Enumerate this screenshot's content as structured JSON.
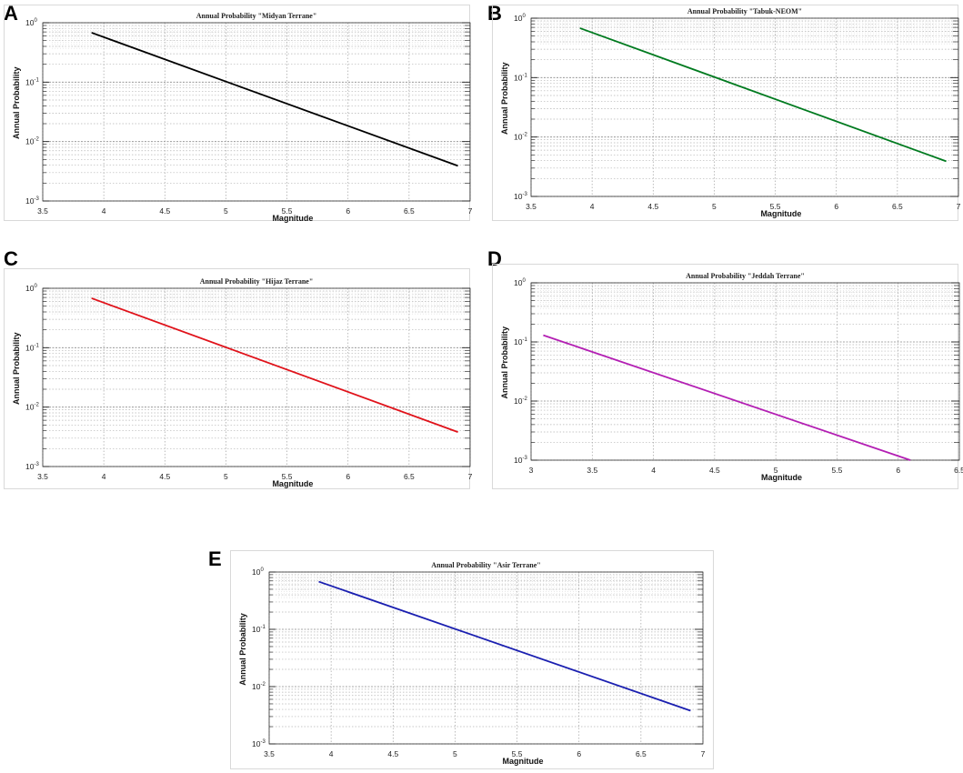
{
  "figure": {
    "panels": [
      {
        "letter": "A",
        "chart_data": {
          "type": "line",
          "title": "Annual Probability \"Midyan Terrane\"",
          "xlabel": "Magnitude",
          "ylabel": "Annual Probability",
          "xlim": [
            3.5,
            7
          ],
          "xticks": [
            "3.5",
            "4",
            "4.5",
            "5",
            "5.5",
            "6",
            "6.5",
            "7"
          ],
          "yscale": "log",
          "ylim": [
            0.001,
            1
          ],
          "yticks": [
            {
              "base": "10",
              "exp": "0"
            },
            {
              "base": "10",
              "exp": "-1"
            },
            {
              "base": "10",
              "exp": "-2"
            },
            {
              "base": "10",
              "exp": "-3"
            }
          ],
          "grid": true,
          "series": [
            {
              "name": "Midyan Terrane",
              "color": "#000000",
              "x": [
                3.9,
                6.9
              ],
              "y": [
                0.68,
                0.0039
              ]
            }
          ]
        }
      },
      {
        "letter": "B",
        "chart_data": {
          "type": "line",
          "title": "Annual Probability \"Tabuk-NEOM\"",
          "xlabel": "Magnitude",
          "ylabel": "Annual Probability",
          "xlim": [
            3.5,
            7
          ],
          "xticks": [
            "3.5",
            "4",
            "4.5",
            "5",
            "5.5",
            "6",
            "6.5",
            "7"
          ],
          "yscale": "log",
          "ylim": [
            0.001,
            1
          ],
          "yticks": [
            {
              "base": "10",
              "exp": "0"
            },
            {
              "base": "10",
              "exp": "-1"
            },
            {
              "base": "10",
              "exp": "-2"
            },
            {
              "base": "10",
              "exp": "-3"
            }
          ],
          "grid": true,
          "series": [
            {
              "name": "Tabuk-NEOM",
              "color": "#007a1f",
              "x": [
                3.9,
                6.9
              ],
              "y": [
                0.68,
                0.0039
              ]
            }
          ]
        }
      },
      {
        "letter": "C",
        "chart_data": {
          "type": "line",
          "title": "Annual Probability \"Hijaz Terrane\"",
          "xlabel": "Magnitude",
          "ylabel": "Annual Probability",
          "xlim": [
            3.5,
            7
          ],
          "xticks": [
            "3.5",
            "4",
            "4.5",
            "5",
            "5.5",
            "6",
            "6.5",
            "7"
          ],
          "yscale": "log",
          "ylim": [
            0.001,
            1
          ],
          "yticks": [
            {
              "base": "10",
              "exp": "0"
            },
            {
              "base": "10",
              "exp": "-1"
            },
            {
              "base": "10",
              "exp": "-2"
            },
            {
              "base": "10",
              "exp": "-3"
            }
          ],
          "grid": true,
          "series": [
            {
              "name": "Hijaz Terrane",
              "color": "#e0121a",
              "x": [
                3.9,
                6.9
              ],
              "y": [
                0.68,
                0.0038
              ]
            }
          ]
        }
      },
      {
        "letter": "D",
        "chart_data": {
          "type": "line",
          "title": "Annual Probability \"Jeddah Terrane\"",
          "xlabel": "Magnitude",
          "ylabel": "Annual Probability",
          "xlim": [
            3,
            6.5
          ],
          "xticks": [
            "3",
            "3.5",
            "4",
            "4.5",
            "5",
            "5.5",
            "6",
            "6.5"
          ],
          "yscale": "log",
          "ylim": [
            0.001,
            1
          ],
          "yticks": [
            {
              "base": "10",
              "exp": "0"
            },
            {
              "base": "10",
              "exp": "-1"
            },
            {
              "base": "10",
              "exp": "-2"
            },
            {
              "base": "10",
              "exp": "-3"
            }
          ],
          "grid": true,
          "series": [
            {
              "name": "Jeddah Terrane",
              "color": "#b31fb3",
              "x": [
                3.1,
                6.1
              ],
              "y": [
                0.13,
                0.001
              ]
            }
          ]
        }
      },
      {
        "letter": "E",
        "chart_data": {
          "type": "line",
          "title": "Annual Probability \"Asir Terrane\"",
          "xlabel": "Magnitude",
          "ylabel": "Annual Probability",
          "xlim": [
            3.5,
            7
          ],
          "xticks": [
            "3.5",
            "4",
            "4.5",
            "5",
            "5.5",
            "6",
            "6.5",
            "7"
          ],
          "yscale": "log",
          "ylim": [
            0.001,
            1
          ],
          "yticks": [
            {
              "base": "10",
              "exp": "0"
            },
            {
              "base": "10",
              "exp": "-1"
            },
            {
              "base": "10",
              "exp": "-2"
            },
            {
              "base": "10",
              "exp": "-3"
            }
          ],
          "grid": true,
          "series": [
            {
              "name": "Asir Terrane",
              "color": "#1a1fb0",
              "x": [
                3.9,
                6.9
              ],
              "y": [
                0.68,
                0.0038
              ]
            }
          ]
        }
      }
    ]
  }
}
